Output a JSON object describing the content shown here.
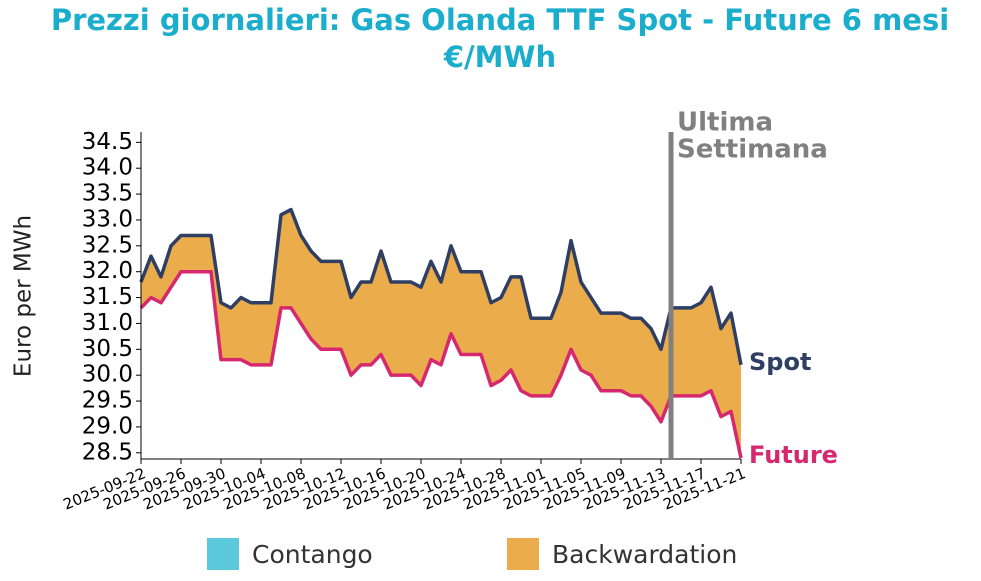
{
  "chart_data": {
    "type": "line",
    "title": [
      "Prezzi giornalieri: Gas Olanda TTF Spot - Future 6 mesi",
      "€/MWh"
    ],
    "ylabel": "Euro per MWh",
    "x": [
      "2025-09-22",
      "2025-09-23",
      "2025-09-24",
      "2025-09-25",
      "2025-09-26",
      "2025-09-27",
      "2025-09-28",
      "2025-09-29",
      "2025-09-30",
      "2025-10-01",
      "2025-10-02",
      "2025-10-03",
      "2025-10-04",
      "2025-10-05",
      "2025-10-06",
      "2025-10-07",
      "2025-10-08",
      "2025-10-09",
      "2025-10-10",
      "2025-10-11",
      "2025-10-12",
      "2025-10-13",
      "2025-10-14",
      "2025-10-15",
      "2025-10-16",
      "2025-10-17",
      "2025-10-18",
      "2025-10-19",
      "2025-10-20",
      "2025-10-21",
      "2025-10-22",
      "2025-10-23",
      "2025-10-24",
      "2025-10-25",
      "2025-10-26",
      "2025-10-27",
      "2025-10-28",
      "2025-10-29",
      "2025-10-30",
      "2025-10-31",
      "2025-11-01",
      "2025-11-02",
      "2025-11-03",
      "2025-11-04",
      "2025-11-05",
      "2025-11-06",
      "2025-11-07",
      "2025-11-08",
      "2025-11-09",
      "2025-11-10",
      "2025-11-11",
      "2025-11-12",
      "2025-11-13",
      "2025-11-14",
      "2025-11-15",
      "2025-11-16",
      "2025-11-17",
      "2025-11-18",
      "2025-11-19",
      "2025-11-20",
      "2025-11-21"
    ],
    "series": [
      {
        "name": "Spot",
        "color": "#2e3f63",
        "values": [
          31.8,
          32.3,
          31.9,
          32.5,
          32.7,
          32.7,
          32.7,
          32.7,
          31.4,
          31.3,
          31.5,
          31.4,
          31.4,
          31.4,
          33.1,
          33.2,
          32.7,
          32.4,
          32.2,
          32.2,
          32.2,
          31.5,
          31.8,
          31.8,
          32.4,
          31.8,
          31.8,
          31.8,
          31.7,
          32.2,
          31.8,
          32.5,
          32.0,
          32.0,
          32.0,
          31.4,
          31.5,
          31.9,
          31.9,
          31.1,
          31.1,
          31.1,
          31.6,
          32.6,
          31.8,
          31.5,
          31.2,
          31.2,
          31.2,
          31.1,
          31.1,
          30.9,
          30.5,
          31.3,
          31.3,
          31.3,
          31.4,
          31.7,
          30.9,
          31.2,
          30.2
        ]
      },
      {
        "name": "Future",
        "color": "#d6286f",
        "values": [
          31.3,
          31.5,
          31.4,
          31.7,
          32.0,
          32.0,
          32.0,
          32.0,
          30.3,
          30.3,
          30.3,
          30.2,
          30.2,
          30.2,
          31.3,
          31.3,
          31.0,
          30.7,
          30.5,
          30.5,
          30.5,
          30.0,
          30.2,
          30.2,
          30.4,
          30.0,
          30.0,
          30.0,
          29.8,
          30.3,
          30.2,
          30.8,
          30.4,
          30.4,
          30.4,
          29.8,
          29.9,
          30.1,
          29.7,
          29.6,
          29.6,
          29.6,
          30.0,
          30.5,
          30.1,
          30.0,
          29.7,
          29.7,
          29.7,
          29.6,
          29.6,
          29.4,
          29.1,
          29.6,
          29.6,
          29.6,
          29.6,
          29.7,
          29.2,
          29.3,
          28.4
        ]
      }
    ],
    "fill_legend": [
      {
        "name": "Contango",
        "color": "#5bc8dc"
      },
      {
        "name": "Backwardation",
        "color": "#ebac4c"
      }
    ],
    "annotation": [
      "Ultima",
      "Settimana"
    ],
    "annotation_x": "2025-11-14",
    "annotation_color": "#808080",
    "xlim": [
      "2025-09-22",
      "2025-11-21"
    ],
    "xticks": [
      "2025-09-22",
      "2025-09-26",
      "2025-09-30",
      "2025-10-04",
      "2025-10-08",
      "2025-10-12",
      "2025-10-16",
      "2025-10-20",
      "2025-10-24",
      "2025-10-28",
      "2025-11-01",
      "2025-11-05",
      "2025-11-09",
      "2025-11-13",
      "2025-11-17",
      "2025-11-21"
    ],
    "ylim": [
      28.38,
      34.7
    ],
    "yticks": [
      34.5,
      {
        "value": 34,
        "label": "34.0"
      },
      33.5,
      {
        "value": 33,
        "label": "33.0"
      },
      32.5,
      {
        "value": 32,
        "label": "32.0"
      },
      31.5,
      {
        "value": 31,
        "label": "31.0"
      },
      30.5,
      {
        "value": 30,
        "label": "30.0"
      },
      29.5,
      {
        "value": 29,
        "label": "29.0"
      },
      28.5
    ],
    "title_color": "#1aadcc"
  }
}
